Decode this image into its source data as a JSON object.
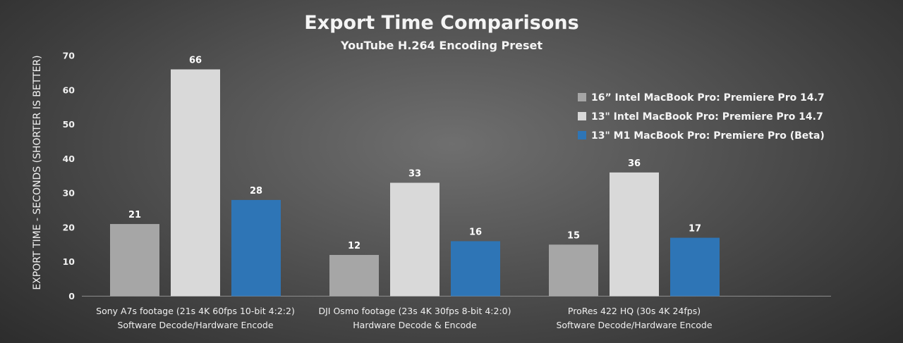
{
  "chart_data": {
    "type": "bar",
    "title": "Export Time Comparisons",
    "subtitle": "YouTube H.264 Encoding Preset",
    "ylabel": "EXPORT TIME - SECONDS (SHORTER IS BETTER)",
    "xlabel": "",
    "ylim": [
      0,
      70
    ],
    "yticks": [
      0,
      10,
      20,
      30,
      40,
      50,
      60,
      70
    ],
    "grid": false,
    "legend_position": "right",
    "categories": [
      [
        "Sony A7s footage (21s 4K 60fps 10-bit 4:2:2)",
        "Software Decode/Hardware Encode"
      ],
      [
        "DJI Osmo footage (23s 4K 30fps 8-bit 4:2:0)",
        "Hardware Decode & Encode"
      ],
      [
        "ProRes 422 HQ (30s 4K 24fps)",
        "Software Decode/Hardware Encode"
      ]
    ],
    "series": [
      {
        "name": "16” Intel MacBook Pro: Premiere Pro 14.7",
        "color": "#a6a6a6",
        "values": [
          21,
          12,
          15
        ]
      },
      {
        "name": "13\" Intel MacBook Pro: Premiere Pro 14.7",
        "color": "#d9d9d9",
        "values": [
          66,
          33,
          36
        ]
      },
      {
        "name": "13\" M1 MacBook Pro: Premiere Pro (Beta)",
        "color": "#2e75b6",
        "values": [
          28,
          16,
          17
        ]
      }
    ]
  }
}
